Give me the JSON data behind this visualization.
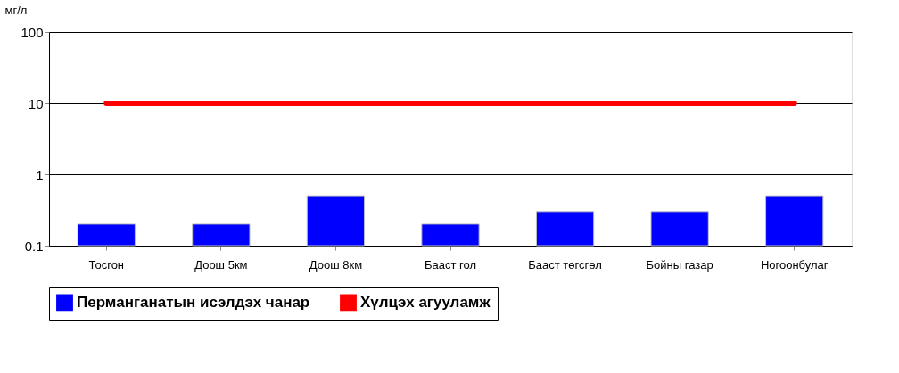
{
  "chart_data": {
    "type": "bar",
    "ylabel": "мг/л",
    "categories": [
      "Тосгон",
      "Доош 5км",
      "Доош 8км",
      "Бааст гол",
      "Бааст төгсгөл",
      "Бойны газар",
      "Ногоонбулаг"
    ],
    "series": [
      {
        "name": "Перманганатын исэлдэх чанар",
        "color": "#0000ff",
        "values": [
          0.2,
          0.2,
          0.5,
          0.2,
          0.3,
          0.3,
          0.5
        ]
      },
      {
        "name": "Хүлцэх агууламж",
        "type": "line",
        "color": "#ff0000",
        "values": [
          10,
          10,
          10,
          10,
          10,
          10,
          10
        ]
      }
    ],
    "log": "y",
    "ylim": [
      0.1,
      100
    ],
    "yticks": [
      0.1,
      1,
      10,
      100
    ],
    "grid": "y",
    "legend": "bottom"
  }
}
